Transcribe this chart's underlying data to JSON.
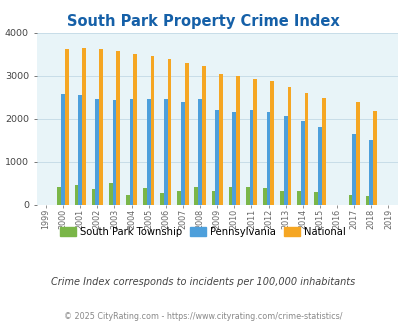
{
  "title": "South Park Property Crime Index",
  "years": [
    1999,
    2000,
    2001,
    2002,
    2003,
    2004,
    2005,
    2006,
    2007,
    2008,
    2009,
    2010,
    2011,
    2012,
    2013,
    2014,
    2015,
    2016,
    2017,
    2018,
    2019
  ],
  "south_park": [
    0,
    420,
    450,
    370,
    500,
    220,
    390,
    270,
    320,
    410,
    320,
    400,
    410,
    390,
    310,
    320,
    300,
    0,
    230,
    200,
    0
  ],
  "pennsylvania": [
    0,
    2580,
    2560,
    2470,
    2440,
    2450,
    2450,
    2470,
    2390,
    2460,
    2210,
    2160,
    2210,
    2150,
    2060,
    1960,
    1820,
    0,
    1640,
    1500,
    0
  ],
  "national": [
    0,
    3620,
    3650,
    3620,
    3590,
    3520,
    3460,
    3400,
    3310,
    3220,
    3050,
    2990,
    2920,
    2870,
    2730,
    2600,
    2490,
    0,
    2380,
    2190,
    0
  ],
  "ylim": [
    0,
    4000
  ],
  "yticks": [
    0,
    1000,
    2000,
    3000,
    4000
  ],
  "bar_width": 0.22,
  "south_park_color": "#7ab648",
  "pennsylvania_color": "#4d9fdb",
  "national_color": "#f5a623",
  "plot_bg": "#e8f4f8",
  "title_color": "#1560a8",
  "subtitle": "Crime Index corresponds to incidents per 100,000 inhabitants",
  "footer": "© 2025 CityRating.com - https://www.cityrating.com/crime-statistics/",
  "subtitle_color": "#444444",
  "footer_color": "#888888",
  "legend_labels": [
    "South Park Township",
    "Pennsylvania",
    "National"
  ],
  "grid_color": "#c8dde8"
}
